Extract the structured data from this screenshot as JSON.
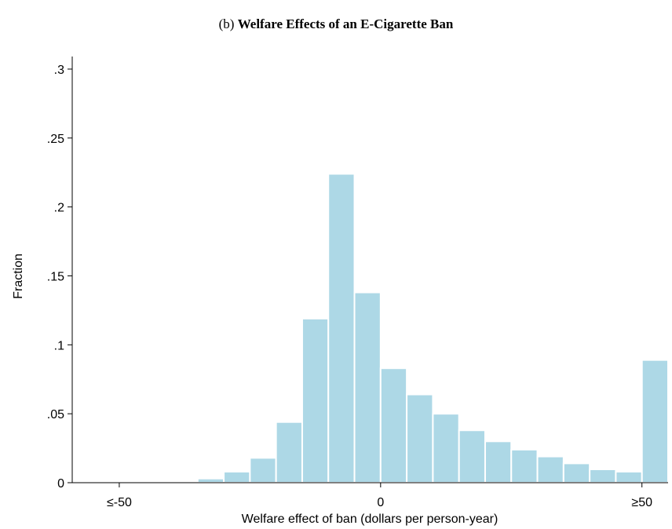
{
  "chart_data": {
    "type": "histogram",
    "label": "(b)",
    "title": "Welfare Effects of an E-Cigarette Ban",
    "x_label": "Welfare effect of ban (dollars per person-year)",
    "y_label": "Fraction",
    "bins": [
      -55,
      -50,
      -45,
      -40,
      -35,
      -30,
      -25,
      -20,
      -15,
      -10,
      -5,
      0,
      5,
      10,
      15,
      20,
      25,
      30,
      35,
      40,
      45,
      50,
      55
    ],
    "values": [
      0.0005,
      0.0005,
      0.0003,
      0.001,
      0.003,
      0.008,
      0.018,
      0.044,
      0.119,
      0.224,
      0.138,
      0.083,
      0.064,
      0.05,
      0.038,
      0.03,
      0.024,
      0.019,
      0.014,
      0.0097,
      0.008,
      0.089
    ],
    "color": "#add8e6",
    "xlim": [
      -59,
      55
    ],
    "ylim": [
      0,
      0.3
    ],
    "xticks": [
      {
        "value": -50,
        "label": "≤-50"
      },
      0,
      {
        "value": 50,
        "label": "≥50"
      }
    ],
    "yticks": [
      0,
      {
        "value": 0.05,
        "label": ".05"
      },
      {
        "value": 0.1,
        "label": ".1"
      },
      {
        "value": 0.15,
        "label": ".15"
      },
      {
        "value": 0.2,
        "label": ".2"
      },
      {
        "value": 0.25,
        "label": ".25"
      },
      {
        "value": 0.3,
        "label": ".3"
      }
    ]
  }
}
